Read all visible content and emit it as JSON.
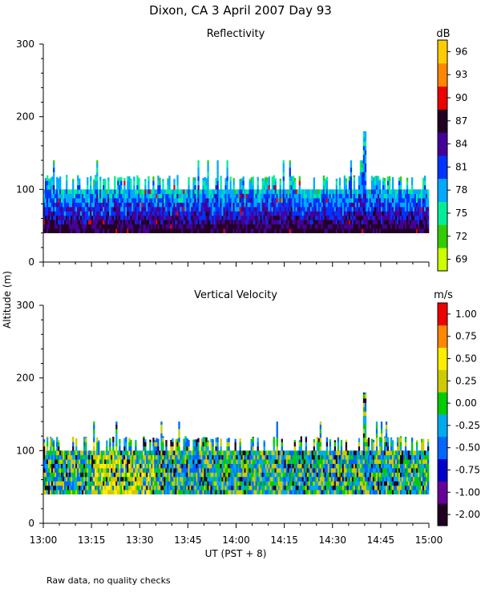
{
  "header": {
    "title": "Dixon, CA   3 April 2007   Day   93"
  },
  "footer": {
    "note": "Raw data, no quality checks"
  },
  "chart_data": [
    {
      "type": "heatmap",
      "title": "Reflectivity",
      "units": "dB",
      "xlabel": "UT  (PST + 8)",
      "ylabel": "Altitude (m)",
      "xlim": [
        "13:00",
        "15:00"
      ],
      "ylim": [
        0,
        300
      ],
      "x_ticks": [
        "13:00",
        "13:15",
        "13:30",
        "13:45",
        "14:00",
        "14:15",
        "14:30",
        "14:45",
        "15:00"
      ],
      "y_ticks": [
        0,
        100,
        200,
        300
      ],
      "colorbar_ticks": [
        69,
        72,
        75,
        78,
        81,
        84,
        87,
        90,
        93,
        96
      ],
      "colorbar_colors": [
        "#ccff00",
        "#33cc00",
        "#00ee99",
        "#00aaff",
        "#0033ff",
        "#440099",
        "#220022",
        "#ee0000",
        "#ff8800",
        "#ffcc00"
      ],
      "echo_base_altitude_m": 40,
      "echo_top_altitude_m_typical": [
        100,
        120
      ],
      "peak_echo_top": {
        "time": "14:40",
        "altitude_m": 180
      }
    },
    {
      "type": "heatmap",
      "title": "Vertical Velocity",
      "units": "m/s",
      "xlabel": "UT  (PST + 8)",
      "ylabel": "Altitude (m)",
      "xlim": [
        "13:00",
        "15:00"
      ],
      "ylim": [
        0,
        300
      ],
      "x_ticks": [
        "13:00",
        "13:15",
        "13:30",
        "13:45",
        "14:00",
        "14:15",
        "14:30",
        "14:45",
        "15:00"
      ],
      "y_ticks": [
        0,
        100,
        200,
        300
      ],
      "colorbar_ticks": [
        "-2.00",
        "-1.00",
        "-0.75",
        "-0.50",
        "-0.25",
        "0.00",
        "0.25",
        "0.50",
        "0.75",
        "1.00"
      ],
      "colorbar_colors": [
        "#220022",
        "#660099",
        "#0000cc",
        "#0066ff",
        "#00aaee",
        "#00cc00",
        "#cccc00",
        "#ffee00",
        "#ff8800",
        "#ee0000"
      ],
      "echo_base_altitude_m": 40,
      "echo_top_altitude_m_typical": [
        100,
        120
      ],
      "peak_echo_top": {
        "time": "14:40",
        "altitude_m": 180
      }
    }
  ]
}
